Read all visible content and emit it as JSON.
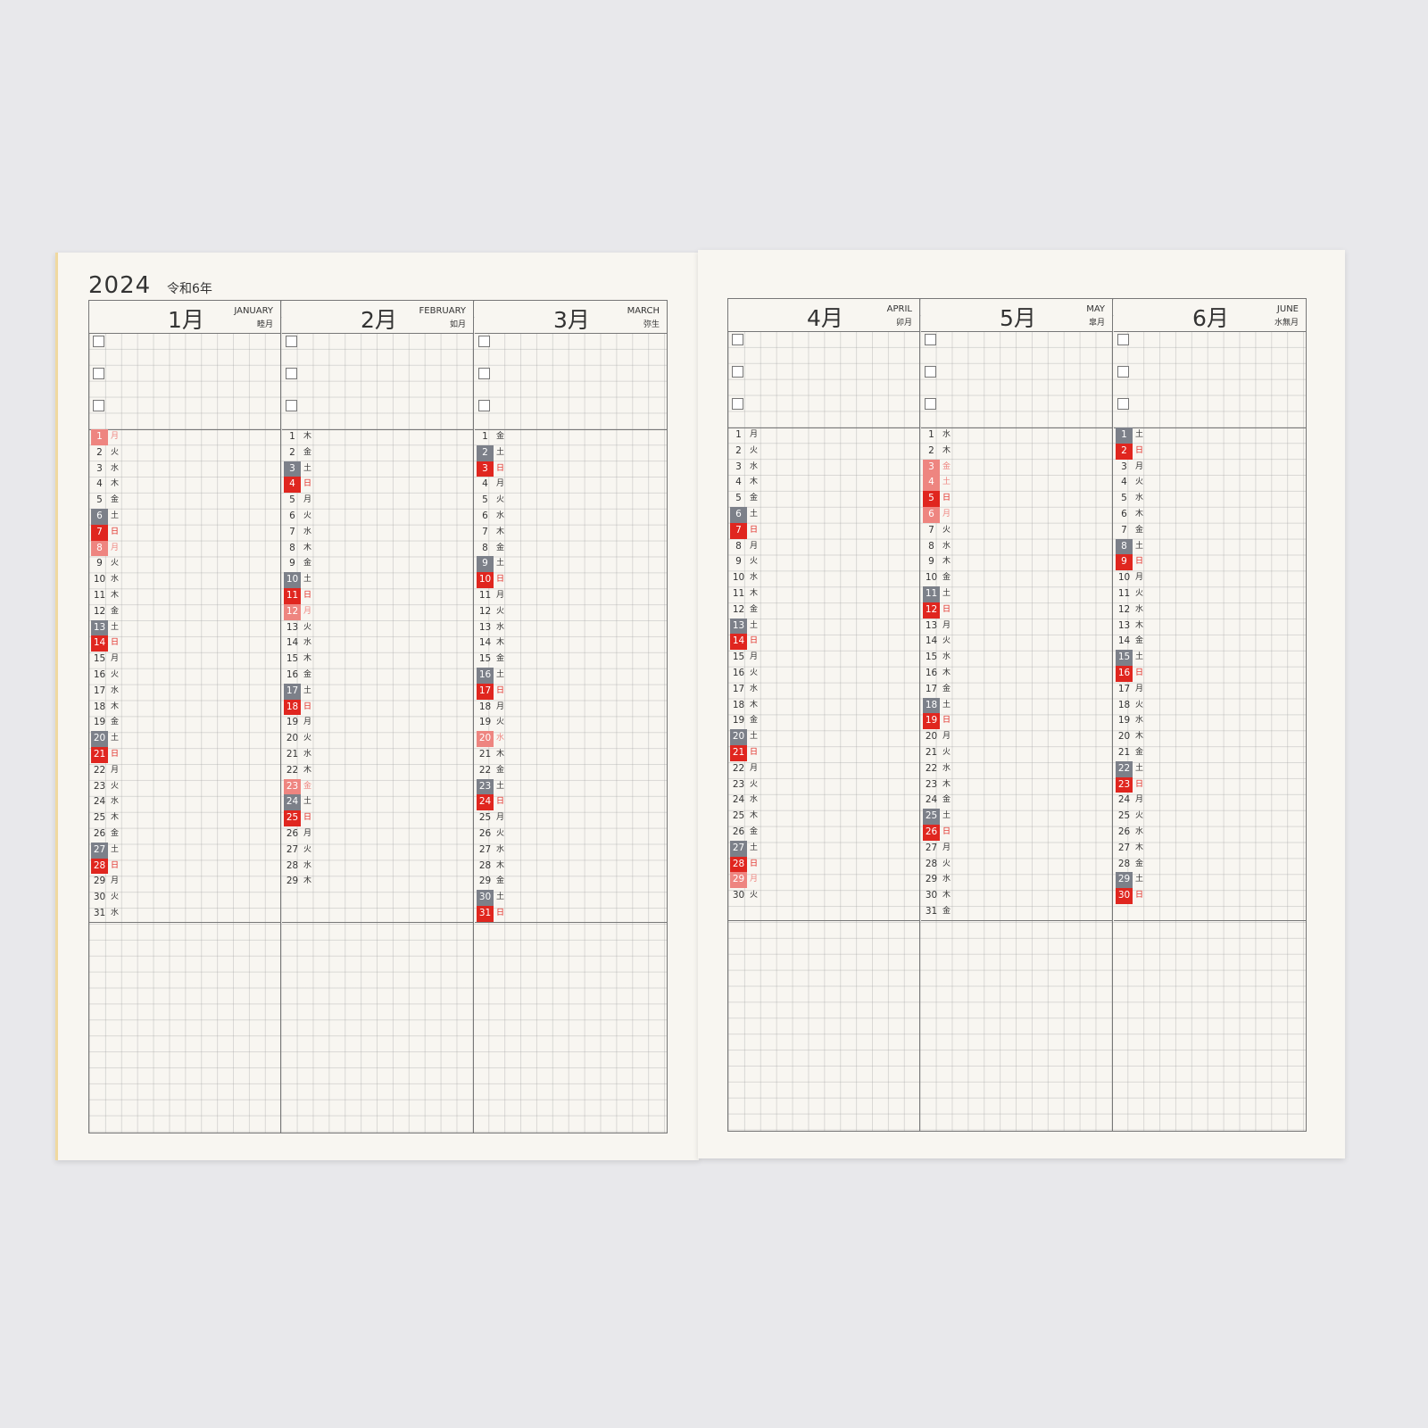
{
  "header": {
    "year": "2024",
    "era": "令和6年"
  },
  "colors": {
    "sunday_holiday": "#e0261f",
    "saturday": "#7c8089",
    "substitute_holiday": "#ee8580"
  },
  "months": [
    {
      "num": "1月",
      "en": "JANUARY",
      "jp": "睦月",
      "weekdays": "月火水木金土日月火水木金土日月火水木金土日月火水木金土日月火水",
      "marks": {
        "1": "pink",
        "6": "gray",
        "7": "red",
        "8": "pink",
        "13": "gray",
        "14": "red",
        "20": "gray",
        "21": "red",
        "27": "gray",
        "28": "red"
      }
    },
    {
      "num": "2月",
      "en": "FEBRUARY",
      "jp": "如月",
      "weekdays": "木金土日月火水木金土日月火水木金土日月火水木金土日月火水木",
      "marks": {
        "3": "gray",
        "4": "red",
        "10": "gray",
        "11": "red",
        "12": "pink",
        "17": "gray",
        "18": "red",
        "23": "pink",
        "24": "gray",
        "25": "red"
      }
    },
    {
      "num": "3月",
      "en": "MARCH",
      "jp": "弥生",
      "weekdays": "金土日月火水木金土日月火水木金土日月火水木金土日月火水木金土日",
      "marks": {
        "2": "gray",
        "3": "red",
        "9": "gray",
        "10": "red",
        "16": "gray",
        "17": "red",
        "20": "pink",
        "23": "gray",
        "24": "red",
        "30": "gray",
        "31": "red"
      }
    },
    {
      "num": "4月",
      "en": "APRIL",
      "jp": "卯月",
      "weekdays": "月火水木金土日月火水木金土日月火水木金土日月火水木金土日月火",
      "marks": {
        "6": "gray",
        "7": "red",
        "13": "gray",
        "14": "red",
        "20": "gray",
        "21": "red",
        "27": "gray",
        "28": "red",
        "29": "pink"
      }
    },
    {
      "num": "5月",
      "en": "MAY",
      "jp": "皐月",
      "weekdays": "水木金土日月火水木金土日月火水木金土日月火水木金土日月火水木金",
      "marks": {
        "3": "pink",
        "4": "pink",
        "5": "red",
        "6": "pink",
        "11": "gray",
        "12": "red",
        "18": "gray",
        "19": "red",
        "25": "gray",
        "26": "red"
      }
    },
    {
      "num": "6月",
      "en": "JUNE",
      "jp": "水無月",
      "weekdays": "土日月火水木金土日月火水木金土日月火水木金土日月火水木金土日",
      "marks": {
        "1": "gray",
        "2": "red",
        "8": "gray",
        "9": "red",
        "15": "gray",
        "16": "red",
        "22": "gray",
        "23": "red",
        "29": "gray",
        "30": "red"
      }
    }
  ]
}
